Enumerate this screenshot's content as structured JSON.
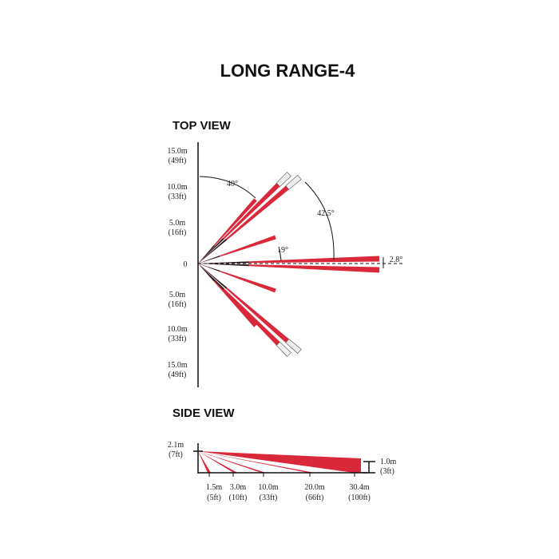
{
  "title": "LONG RANGE-4",
  "top_view": {
    "heading": "TOP VIEW",
    "axis_labels": [
      {
        "m": "15.0m",
        "ft": "(49ft)"
      },
      {
        "m": "10.0m",
        "ft": "(33ft)"
      },
      {
        "m": "5.0m",
        "ft": "(16ft)"
      },
      {
        "m": "0"
      },
      {
        "m": "5.0m",
        "ft": "(16ft)"
      },
      {
        "m": "10.0m",
        "ft": "(33ft)"
      },
      {
        "m": "15.0m",
        "ft": "(49ft)"
      }
    ],
    "angles": [
      "40°",
      "42.5°",
      "19°",
      "2.8°"
    ]
  },
  "side_view": {
    "heading": "SIDE VIEW",
    "height": {
      "m": "2.1m",
      "ft": "(7ft)"
    },
    "end_height": {
      "m": "1.0m",
      "ft": "(3ft)"
    },
    "distances": [
      {
        "m": "1.5m",
        "ft": "(5ft)"
      },
      {
        "m": "3.0m",
        "ft": "(10ft)"
      },
      {
        "m": "10.0m",
        "ft": "(33ft)"
      },
      {
        "m": "20.0m",
        "ft": "(66ft)"
      },
      {
        "m": "30.4m",
        "ft": "(100ft)"
      }
    ]
  }
}
